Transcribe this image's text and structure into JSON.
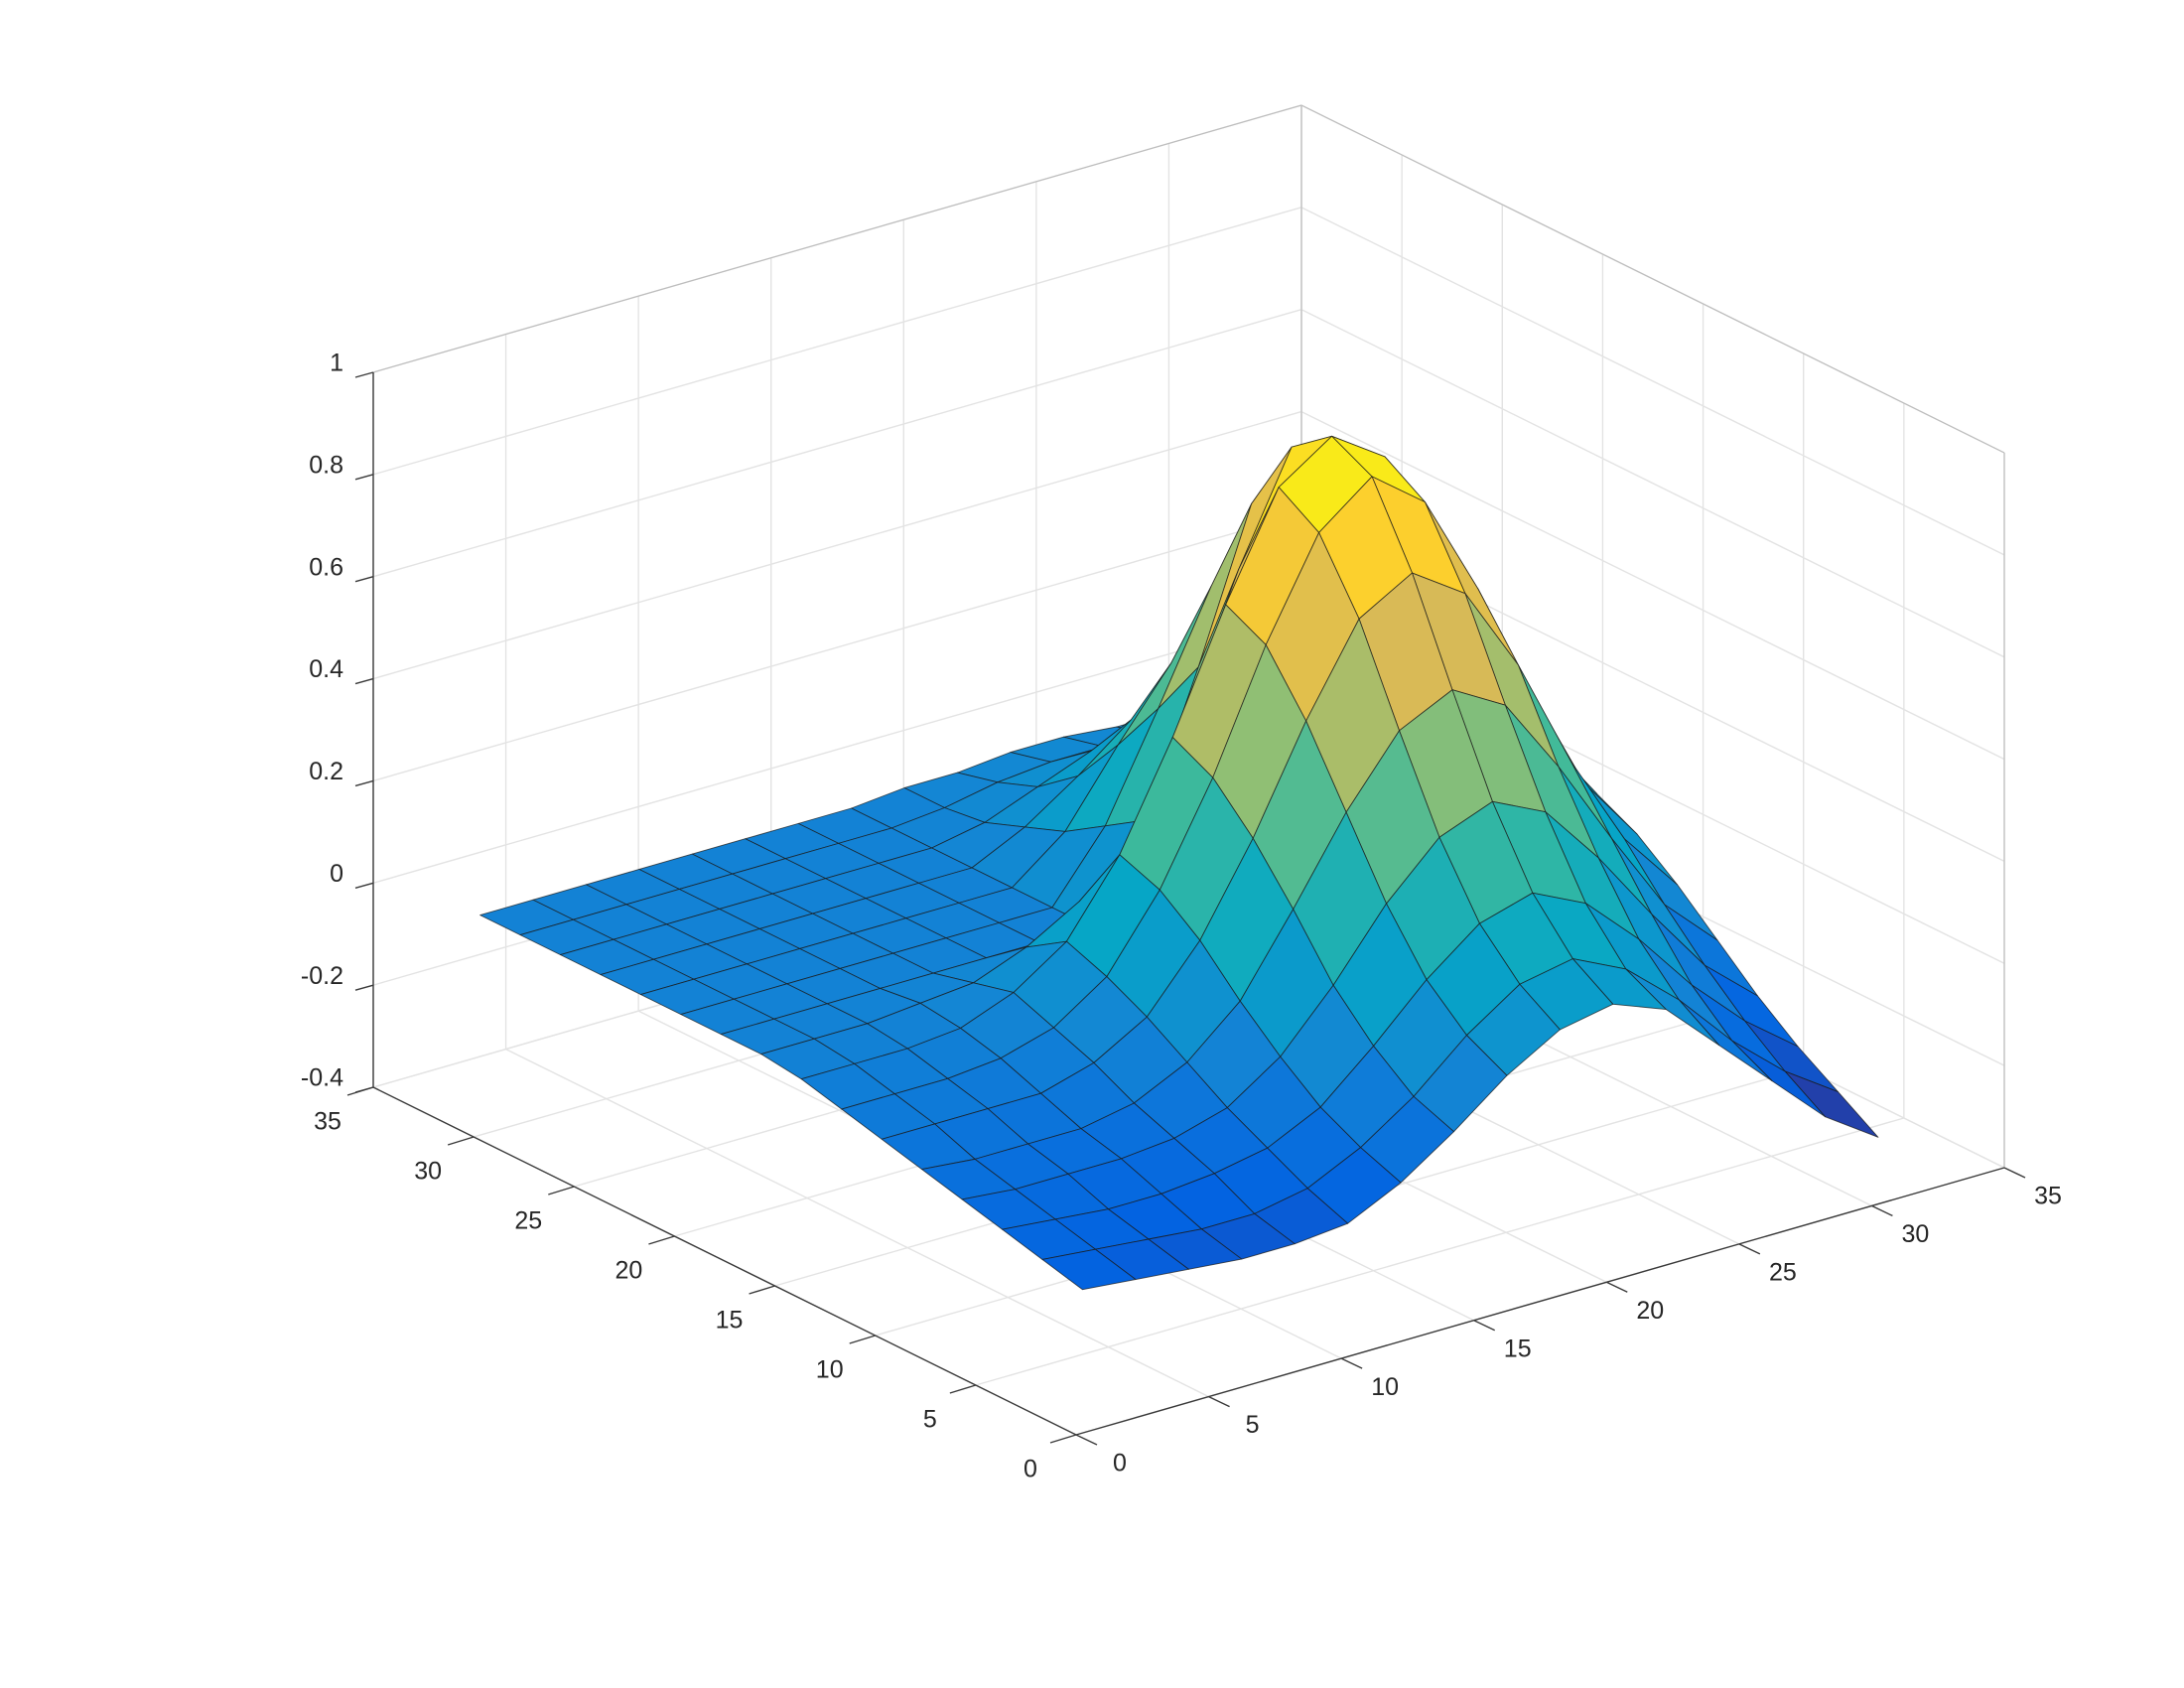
{
  "chart_data": {
    "type": "surface",
    "x": [
      1,
      3,
      5,
      7,
      9,
      11,
      13,
      15,
      17,
      19,
      21,
      23,
      25,
      27,
      29,
      31
    ],
    "y": [
      1,
      3,
      5,
      7,
      9,
      11,
      13,
      15,
      17,
      19,
      21,
      23,
      25,
      27,
      29,
      31
    ],
    "z": [
      [
        -0.15,
        -0.16,
        -0.17,
        -0.18,
        -0.18,
        -0.17,
        -0.12,
        -0.05,
        0.03,
        0.09,
        0.11,
        0.07,
        -0.03,
        -0.13,
        -0.23,
        -0.3
      ],
      [
        -0.13,
        -0.14,
        -0.15,
        -0.16,
        -0.16,
        -0.14,
        -0.09,
        -0.02,
        0.07,
        0.14,
        0.16,
        0.11,
        0.02,
        -0.09,
        -0.18,
        -0.25
      ],
      [
        -0.11,
        -0.12,
        -0.13,
        -0.13,
        -0.12,
        -0.1,
        -0.05,
        0.04,
        0.14,
        0.22,
        0.25,
        0.2,
        0.1,
        -0.02,
        -0.12,
        -0.2
      ],
      [
        -0.09,
        -0.1,
        -0.1,
        -0.1,
        -0.09,
        -0.06,
        0.01,
        0.12,
        0.25,
        0.35,
        0.39,
        0.34,
        0.22,
        0.08,
        -0.05,
        -0.14
      ],
      [
        -0.07,
        -0.08,
        -0.08,
        -0.08,
        -0.06,
        -0.01,
        0.08,
        0.23,
        0.39,
        0.52,
        0.57,
        0.51,
        0.36,
        0.19,
        0.03,
        -0.07
      ],
      [
        -0.05,
        -0.05,
        -0.05,
        -0.05,
        -0.02,
        0.04,
        0.16,
        0.33,
        0.53,
        0.7,
        0.76,
        0.69,
        0.52,
        0.3,
        0.12,
        0
      ],
      [
        -0.03,
        -0.03,
        -0.03,
        -0.02,
        0.01,
        0.08,
        0.22,
        0.41,
        0.64,
        0.83,
        0.91,
        0.83,
        0.63,
        0.4,
        0.19,
        0.06
      ],
      [
        -0.01,
        -0.01,
        -0.01,
        0,
        0.04,
        0.11,
        0.25,
        0.45,
        0.68,
        0.88,
        0.95,
        0.88,
        0.68,
        0.45,
        0.24,
        0.1
      ],
      [
        0,
        0,
        0,
        0.01,
        0.02,
        0.06,
        0.12,
        0.21,
        0.43,
        0.68,
        0.89,
        0.82,
        0.64,
        0.43,
        0.24,
        0.12
      ],
      [
        0,
        0,
        0,
        0,
        0,
        0,
        0,
        0,
        0.18,
        0.45,
        0.74,
        0.68,
        0.53,
        0.36,
        0.2,
        0.1
      ],
      [
        0,
        0,
        0,
        0,
        0,
        0,
        0,
        0,
        0.13,
        0.33,
        0.54,
        0.5,
        0.39,
        0.26,
        0.15,
        0.07
      ],
      [
        0,
        0,
        0,
        0,
        0,
        0,
        0,
        0,
        0.08,
        0.22,
        0.35,
        0.32,
        0.25,
        0.17,
        0.1,
        0.05
      ],
      [
        0,
        0,
        0,
        0,
        0,
        0,
        0,
        0,
        0.05,
        0.12,
        0.2,
        0.18,
        0.14,
        0.1,
        0.05,
        0.03
      ],
      [
        0,
        0,
        0,
        0,
        0,
        0,
        0,
        0,
        0.02,
        0.06,
        0.1,
        0.09,
        0.07,
        0.05,
        0.03,
        0.01
      ],
      [
        0,
        0,
        0,
        0,
        0,
        0,
        0,
        0,
        0.01,
        0.03,
        0.04,
        0.04,
        0.03,
        0.02,
        0.01,
        0.01
      ],
      [
        0,
        0,
        0,
        0,
        0,
        0,
        0,
        0,
        0.01,
        0.01,
        0.02,
        0.02,
        0.01,
        0.01,
        0,
        0
      ]
    ],
    "xlim": [
      0,
      35
    ],
    "ylim": [
      0,
      35
    ],
    "zlim": [
      -0.4,
      1
    ],
    "xticks": [
      0,
      5,
      10,
      15,
      20,
      25,
      30,
      35
    ],
    "yticks": [
      0,
      5,
      10,
      15,
      20,
      25,
      30,
      35
    ],
    "zticks": [
      -0.4,
      -0.2,
      0,
      0.2,
      0.4,
      0.6,
      0.8,
      1
    ],
    "grid": true,
    "colormap": "parula",
    "edge_color": "#1a1a1a"
  }
}
